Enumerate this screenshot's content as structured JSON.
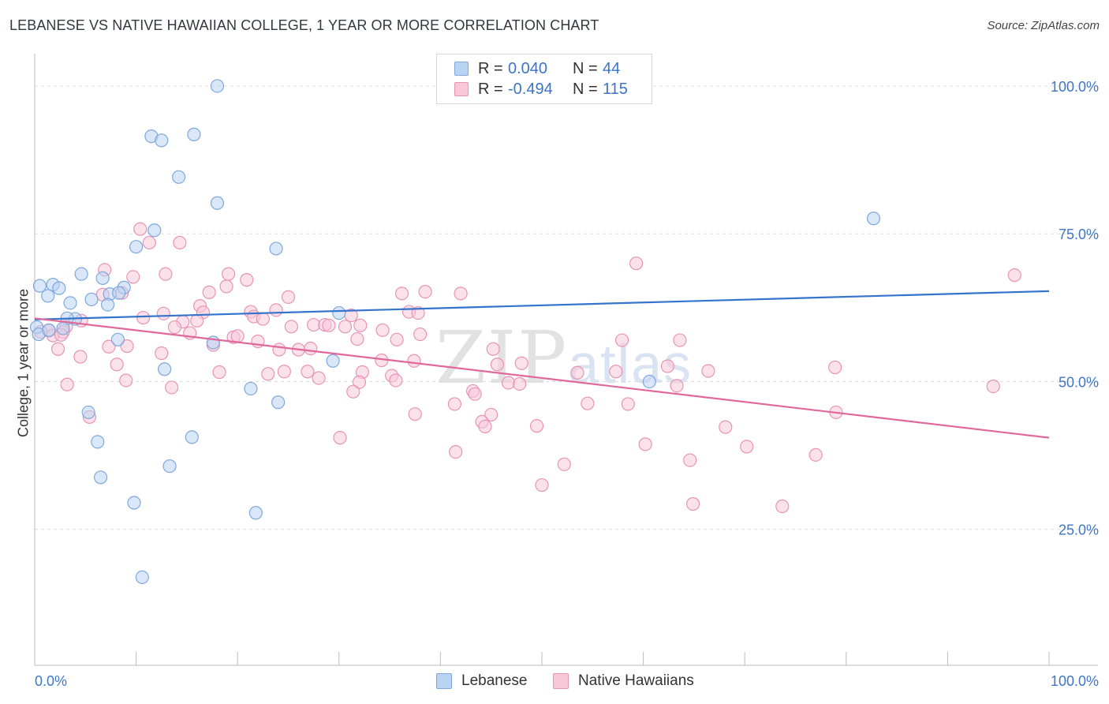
{
  "title": "LEBANESE VS NATIVE HAWAIIAN COLLEGE, 1 YEAR OR MORE CORRELATION CHART",
  "source": "Source: ZipAtlas.com",
  "watermark": {
    "zip": "ZIP",
    "atlas": "atlas"
  },
  "legend": {
    "lebanese": {
      "r_label": "R =",
      "r_value": "0.040",
      "n_label": "N =",
      "n_value": "44"
    },
    "hawaiian": {
      "r_label": "R =",
      "r_value": "-0.494",
      "n_label": "N =",
      "n_value": "115"
    }
  },
  "colors": {
    "lebanese_fill": "#b9d3f3",
    "lebanese_stroke": "#7fa8dc",
    "lebanese_line": "#3574cc",
    "hawaiian_fill": "#f8c8d8",
    "hawaiian_stroke": "#e994b3",
    "hawaiian_line": "#e0689a",
    "tick_label": "#3f76c6"
  },
  "chart_data": {
    "type": "scatter",
    "title": "LEBANESE VS NATIVE HAWAIIAN COLLEGE, 1 YEAR OR MORE CORRELATION CHART",
    "xlabel": "",
    "ylabel": "College, 1 year or more",
    "xlim": [
      0,
      100
    ],
    "ylim": [
      2,
      104
    ],
    "x_tick_labels": [
      "0.0%",
      "100.0%"
    ],
    "y_tick_labels": [
      "25.0%",
      "50.0%",
      "75.0%",
      "100.0%"
    ],
    "y_ticks": [
      25,
      50,
      75,
      100
    ],
    "series": [
      {
        "name": "Lebanese",
        "trend": {
          "x": [
            0,
            100
          ],
          "y": [
            60.5,
            65.3
          ]
        },
        "points": [
          [
            18.0,
            100.0
          ],
          [
            11.5,
            91.5
          ],
          [
            12.5,
            90.8
          ],
          [
            15.7,
            91.8
          ],
          [
            14.2,
            84.6
          ],
          [
            18.0,
            80.2
          ],
          [
            11.8,
            75.6
          ],
          [
            10.0,
            72.8
          ],
          [
            23.8,
            72.5
          ],
          [
            82.7,
            77.6
          ],
          [
            4.6,
            68.2
          ],
          [
            6.7,
            67.5
          ],
          [
            0.5,
            66.2
          ],
          [
            1.8,
            66.4
          ],
          [
            2.4,
            65.8
          ],
          [
            8.8,
            65.9
          ],
          [
            1.3,
            64.5
          ],
          [
            7.4,
            64.8
          ],
          [
            8.3,
            65.0
          ],
          [
            5.6,
            63.9
          ],
          [
            3.5,
            63.3
          ],
          [
            7.2,
            63.0
          ],
          [
            4.0,
            60.6
          ],
          [
            3.2,
            60.7
          ],
          [
            0.2,
            59.2
          ],
          [
            2.8,
            59.0
          ],
          [
            8.2,
            57.1
          ],
          [
            17.6,
            56.6
          ],
          [
            30.0,
            61.6
          ],
          [
            29.4,
            53.5
          ],
          [
            12.8,
            52.1
          ],
          [
            21.3,
            48.8
          ],
          [
            60.6,
            50.0
          ],
          [
            24.0,
            46.5
          ],
          [
            5.3,
            44.8
          ],
          [
            6.2,
            39.8
          ],
          [
            15.5,
            40.6
          ],
          [
            6.5,
            33.8
          ],
          [
            13.3,
            35.7
          ],
          [
            9.8,
            29.5
          ],
          [
            21.8,
            27.8
          ],
          [
            10.6,
            16.9
          ],
          [
            0.4,
            58.0
          ],
          [
            1.4,
            58.7
          ]
        ]
      },
      {
        "name": "Native Hawaiians",
        "trend": {
          "x": [
            0,
            100
          ],
          "y": [
            60.7,
            40.5
          ]
        },
        "points": [
          [
            10.4,
            75.8
          ],
          [
            11.3,
            73.5
          ],
          [
            14.3,
            73.5
          ],
          [
            6.9,
            68.9
          ],
          [
            9.7,
            67.7
          ],
          [
            12.9,
            68.2
          ],
          [
            19.1,
            68.2
          ],
          [
            20.9,
            67.2
          ],
          [
            18.9,
            66.1
          ],
          [
            59.3,
            70.0
          ],
          [
            6.7,
            64.7
          ],
          [
            8.6,
            65.0
          ],
          [
            17.2,
            65.1
          ],
          [
            25.0,
            64.3
          ],
          [
            36.2,
            64.9
          ],
          [
            38.5,
            65.2
          ],
          [
            42.0,
            64.9
          ],
          [
            96.6,
            68.0
          ],
          [
            16.3,
            62.8
          ],
          [
            16.6,
            61.7
          ],
          [
            21.3,
            61.8
          ],
          [
            23.8,
            62.1
          ],
          [
            31.2,
            61.2
          ],
          [
            36.9,
            61.8
          ],
          [
            37.8,
            61.6
          ],
          [
            10.7,
            60.8
          ],
          [
            12.7,
            61.5
          ],
          [
            14.6,
            60.1
          ],
          [
            21.6,
            61.0
          ],
          [
            22.5,
            60.6
          ],
          [
            27.5,
            59.6
          ],
          [
            28.6,
            59.6
          ],
          [
            29.0,
            59.5
          ],
          [
            30.6,
            59.3
          ],
          [
            25.3,
            59.3
          ],
          [
            32.1,
            59.5
          ],
          [
            34.3,
            58.7
          ],
          [
            3.1,
            59.3
          ],
          [
            4.6,
            60.3
          ],
          [
            1.4,
            58.6
          ],
          [
            1.8,
            57.8
          ],
          [
            2.8,
            58.4
          ],
          [
            15.3,
            58.2
          ],
          [
            19.6,
            57.5
          ],
          [
            20.0,
            57.7
          ],
          [
            31.8,
            57.2
          ],
          [
            35.7,
            57.1
          ],
          [
            57.9,
            57.0
          ],
          [
            63.6,
            57.0
          ],
          [
            7.3,
            55.9
          ],
          [
            9.1,
            56.0
          ],
          [
            17.6,
            56.2
          ],
          [
            24.1,
            55.4
          ],
          [
            26.0,
            55.4
          ],
          [
            27.2,
            55.6
          ],
          [
            45.2,
            55.5
          ],
          [
            2.3,
            55.5
          ],
          [
            12.5,
            54.8
          ],
          [
            4.5,
            54.2
          ],
          [
            34.2,
            53.6
          ],
          [
            37.4,
            53.5
          ],
          [
            45.6,
            52.9
          ],
          [
            62.4,
            52.6
          ],
          [
            8.1,
            52.9
          ],
          [
            18.2,
            51.6
          ],
          [
            23.0,
            51.3
          ],
          [
            24.6,
            51.7
          ],
          [
            26.9,
            51.7
          ],
          [
            32.3,
            51.6
          ],
          [
            35.2,
            51.0
          ],
          [
            53.5,
            51.5
          ],
          [
            57.3,
            51.7
          ],
          [
            66.4,
            51.8
          ],
          [
            78.9,
            52.4
          ],
          [
            9.0,
            50.2
          ],
          [
            28.0,
            50.6
          ],
          [
            32.0,
            49.9
          ],
          [
            35.6,
            50.2
          ],
          [
            46.7,
            49.8
          ],
          [
            47.8,
            49.6
          ],
          [
            63.3,
            49.3
          ],
          [
            3.2,
            49.5
          ],
          [
            13.5,
            49.0
          ],
          [
            31.4,
            48.3
          ],
          [
            43.2,
            48.4
          ],
          [
            43.4,
            47.9
          ],
          [
            94.5,
            49.2
          ],
          [
            41.4,
            46.2
          ],
          [
            54.5,
            46.3
          ],
          [
            58.5,
            46.2
          ],
          [
            37.5,
            44.5
          ],
          [
            45.0,
            44.4
          ],
          [
            79.0,
            44.8
          ],
          [
            5.4,
            44.0
          ],
          [
            44.1,
            43.2
          ],
          [
            44.4,
            42.4
          ],
          [
            49.5,
            42.5
          ],
          [
            68.1,
            42.3
          ],
          [
            30.1,
            40.5
          ],
          [
            60.2,
            39.4
          ],
          [
            70.2,
            39.0
          ],
          [
            41.5,
            38.1
          ],
          [
            77.0,
            37.6
          ],
          [
            64.6,
            36.7
          ],
          [
            52.2,
            36.0
          ],
          [
            50.0,
            32.5
          ],
          [
            64.9,
            29.3
          ],
          [
            73.7,
            28.9
          ],
          [
            0.6,
            58.4
          ],
          [
            2.6,
            57.9
          ],
          [
            13.8,
            59.2
          ],
          [
            16.0,
            60.3
          ],
          [
            22.0,
            56.8
          ],
          [
            38.0,
            58.0
          ],
          [
            48.0,
            53.1
          ]
        ]
      }
    ]
  },
  "bottom_legend": {
    "lebanese": "Lebanese",
    "hawaiian": "Native Hawaiians"
  }
}
